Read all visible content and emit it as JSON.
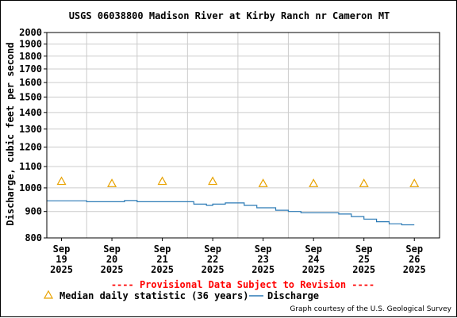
{
  "chart_data": {
    "type": "line",
    "title": "USGS 06038800 Madison River at Kirby Ranch nr Cameron MT",
    "ylabel": "Discharge, cubic feet per second",
    "xlabel": "",
    "ylim": [
      800,
      2000
    ],
    "yscale": "log",
    "yticks": [
      800,
      900,
      1000,
      1100,
      1200,
      1300,
      1400,
      1500,
      1600,
      1700,
      1800,
      1900,
      2000
    ],
    "xlim": [
      "2025-09-18T17:00",
      "2025-09-26T12:00"
    ],
    "x_ticks": [
      {
        "date": "2025-09-19T00:00",
        "label": [
          "Sep",
          "19",
          "2025"
        ]
      },
      {
        "date": "2025-09-20T00:00",
        "label": [
          "Sep",
          "20",
          "2025"
        ]
      },
      {
        "date": "2025-09-21T00:00",
        "label": [
          "Sep",
          "21",
          "2025"
        ]
      },
      {
        "date": "2025-09-22T00:00",
        "label": [
          "Sep",
          "22",
          "2025"
        ]
      },
      {
        "date": "2025-09-23T00:00",
        "label": [
          "Sep",
          "23",
          "2025"
        ]
      },
      {
        "date": "2025-09-24T00:00",
        "label": [
          "Sep",
          "24",
          "2025"
        ]
      },
      {
        "date": "2025-09-25T00:00",
        "label": [
          "Sep",
          "25",
          "2025"
        ]
      },
      {
        "date": "2025-09-26T00:00",
        "label": [
          "Sep",
          "26",
          "2025"
        ]
      }
    ],
    "grid": true,
    "series": [
      {
        "name": "Median daily statistic (36 years)",
        "type": "scatter",
        "marker": "triangle",
        "color": "#e8a200",
        "x": [
          "2025-09-19T00:00",
          "2025-09-20T00:00",
          "2025-09-21T00:00",
          "2025-09-22T00:00",
          "2025-09-23T00:00",
          "2025-09-24T00:00",
          "2025-09-25T00:00",
          "2025-09-26T00:00"
        ],
        "y": [
          1030,
          1020,
          1030,
          1030,
          1020,
          1020,
          1020,
          1020
        ]
      },
      {
        "name": "Discharge",
        "type": "line",
        "color": "#2b7ab5",
        "x": [
          "2025-09-18T17:00",
          "2025-09-19T00:00",
          "2025-09-19T12:00",
          "2025-09-20T00:00",
          "2025-09-20T06:00",
          "2025-09-20T12:00",
          "2025-09-21T00:00",
          "2025-09-21T12:00",
          "2025-09-21T15:00",
          "2025-09-21T21:00",
          "2025-09-22T00:00",
          "2025-09-22T06:00",
          "2025-09-22T09:00",
          "2025-09-22T15:00",
          "2025-09-22T21:00",
          "2025-09-23T06:00",
          "2025-09-23T12:00",
          "2025-09-23T18:00",
          "2025-09-24T00:00",
          "2025-09-24T06:00",
          "2025-09-24T12:00",
          "2025-09-24T18:00",
          "2025-09-25T00:00",
          "2025-09-25T06:00",
          "2025-09-25T12:00",
          "2025-09-25T18:00",
          "2025-09-26T00:00"
        ],
        "y": [
          944,
          944,
          940,
          940,
          945,
          940,
          940,
          940,
          930,
          925,
          930,
          935,
          935,
          925,
          915,
          905,
          900,
          895,
          895,
          895,
          890,
          880,
          870,
          860,
          852,
          848,
          848
        ]
      }
    ],
    "legend": {
      "placement": "bottom",
      "median_label": "Median daily statistic (36 years)",
      "discharge_label": "Discharge"
    },
    "annotations": {
      "provisional": "---- Provisional Data Subject to Revision ----",
      "credit": "Graph courtesy of the U.S. Geological Survey"
    }
  }
}
